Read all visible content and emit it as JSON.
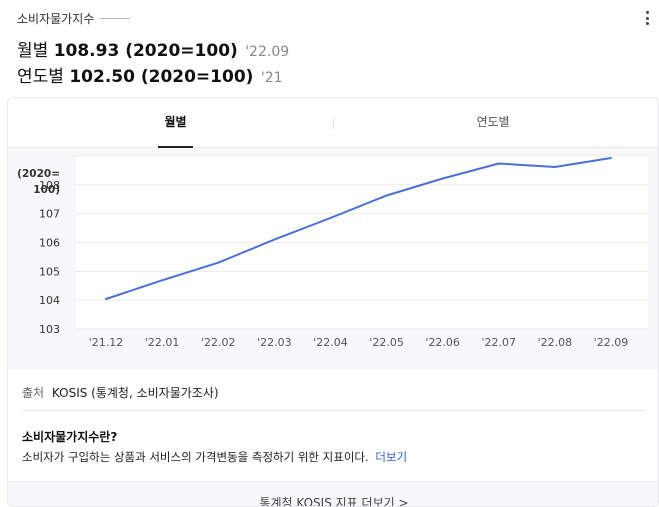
{
  "header": {
    "kicker": "소비자물가지수",
    "monthly": {
      "label": "월별",
      "value": "108.93 (2020=100)",
      "date": "'22.09"
    },
    "yearly": {
      "label": "연도별",
      "value": "102.50 (2020=100)",
      "date": "'21"
    }
  },
  "tabs": [
    {
      "label": "월별",
      "active": true
    },
    {
      "label": "연도별",
      "active": false
    }
  ],
  "chart_data": {
    "type": "line",
    "ylabel": "(2020=100)",
    "categories": [
      "'21.12",
      "'22.01",
      "'22.02",
      "'22.03",
      "'22.04",
      "'22.05",
      "'22.06",
      "'22.07",
      "'22.08",
      "'22.09"
    ],
    "series": [
      {
        "values": [
          104.04,
          104.69,
          105.3,
          106.1,
          106.85,
          107.63,
          108.22,
          108.74,
          108.62,
          108.93
        ]
      }
    ],
    "yticks": [
      103,
      104,
      105,
      106,
      107,
      108
    ],
    "ylim": [
      103,
      109
    ],
    "grid": true,
    "line_color": "#4a6fd6"
  },
  "footer": {
    "source_label": "출처",
    "source_text": "KOSIS (통계청, 소비자물가조사)",
    "question": "소비자물가지수란?",
    "description": "소비자가 구입하는 상품과 서비스의 가격변동을 측정하기 위한 지표이다.",
    "more_link": "더보기",
    "bottom_link": "통계청 KOSIS 지표 더보기 >"
  }
}
